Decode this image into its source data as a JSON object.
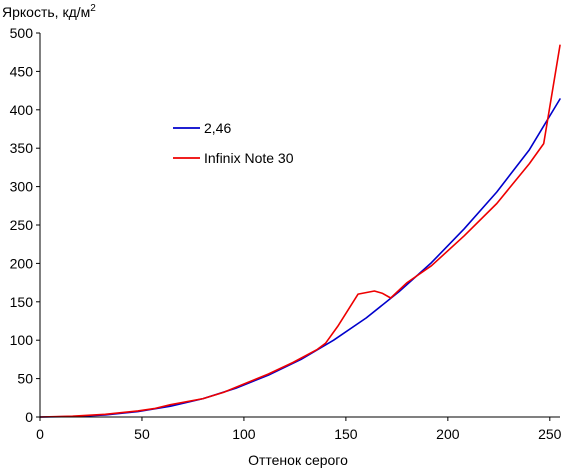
{
  "chart_data": {
    "type": "line",
    "title": "",
    "ylabel": "Яркость, кд/м",
    "ylabel_sup": "2",
    "xlabel": "Оттенок серого",
    "xlim": [
      0,
      255
    ],
    "ylim": [
      0,
      500
    ],
    "x_ticks": [
      0,
      50,
      100,
      150,
      200,
      250
    ],
    "y_ticks": [
      0,
      50,
      100,
      150,
      200,
      250,
      300,
      350,
      400,
      450,
      500
    ],
    "grid": false,
    "legend_position": "upper-left-inside",
    "series": [
      {
        "name": "2,46",
        "color": "#0000cc",
        "x": [
          0,
          16,
          32,
          48,
          64,
          80,
          96,
          112,
          128,
          144,
          160,
          176,
          192,
          208,
          224,
          240,
          255
        ],
        "y": [
          0,
          0.5,
          2.7,
          7,
          14,
          24,
          37.5,
          54.5,
          75,
          100,
          129,
          163,
          201,
          245,
          293,
          348,
          414
        ]
      },
      {
        "name": "Infinix Note 30",
        "color": "#ee0000",
        "x": [
          0,
          16,
          32,
          48,
          56,
          64,
          80,
          90,
          100,
          112,
          124,
          136,
          140,
          146,
          156,
          164,
          168,
          172,
          180,
          192,
          208,
          224,
          240,
          247,
          255
        ],
        "y": [
          0,
          1,
          3.5,
          8,
          11,
          16,
          24,
          32,
          43,
          56,
          71,
          88,
          96,
          118,
          160,
          164,
          161,
          155,
          175,
          197,
          236,
          278,
          330,
          356,
          484
        ]
      }
    ]
  }
}
